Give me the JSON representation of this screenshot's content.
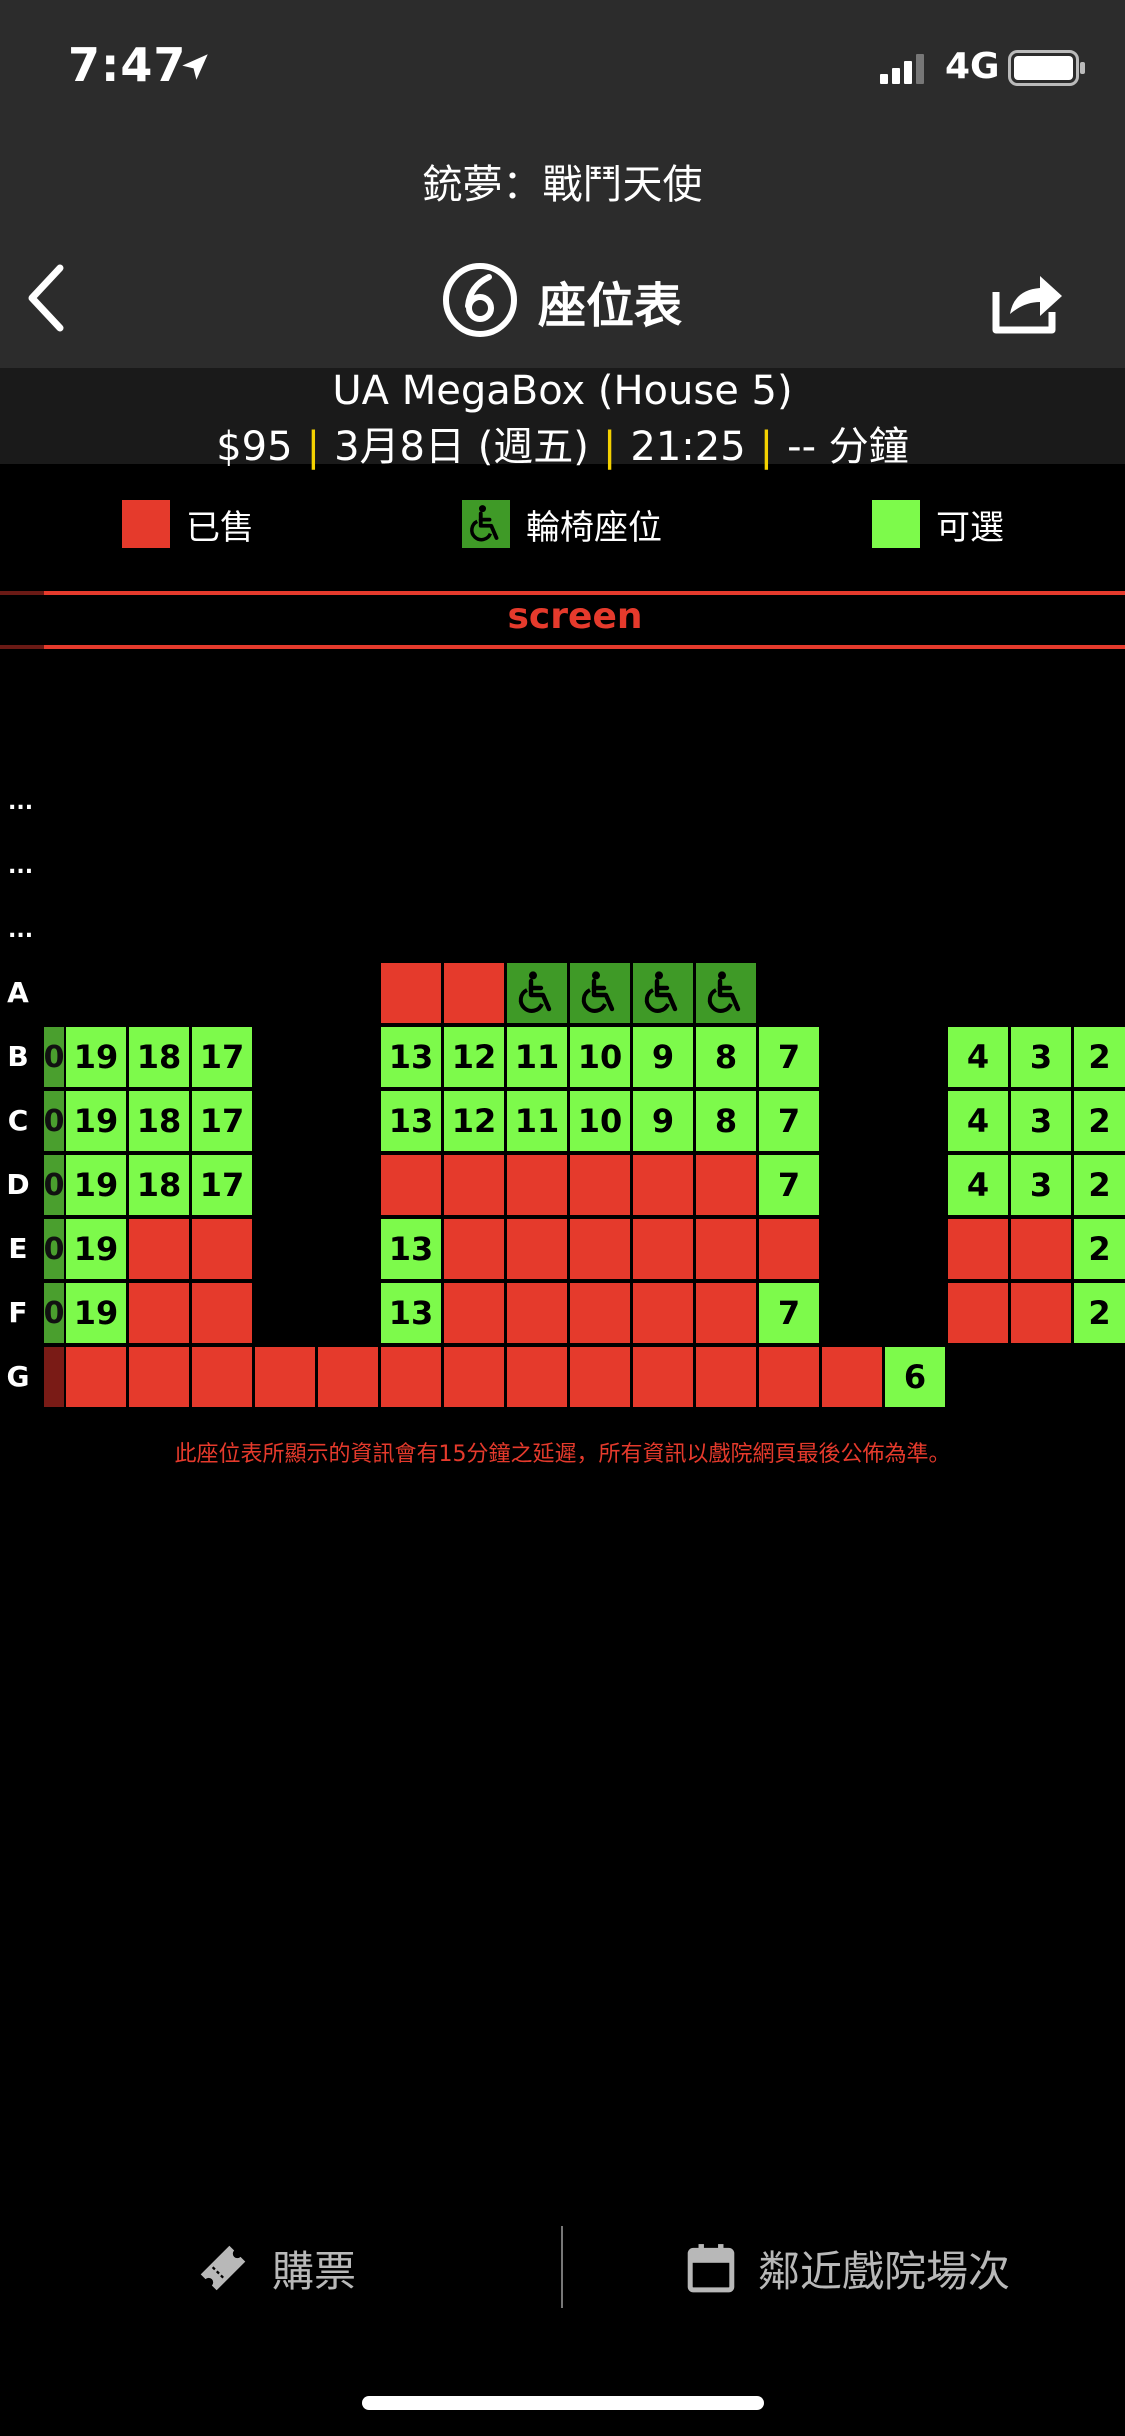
{
  "status_bar": {
    "time": "7:47",
    "network": "4G"
  },
  "header": {
    "movie_title": "銃夢：戰鬥天使",
    "page_title": "座位表"
  },
  "info": {
    "cinema": "UA MegaBox (House 5)",
    "price": "$95",
    "date": "3月8日 (週五)",
    "showtime": "21:25",
    "duration": "-- 分鐘"
  },
  "legend": {
    "sold": "已售",
    "wheelchair": "輪椅座位",
    "available": "可選"
  },
  "screen_label": "screen",
  "ellipsis": "...",
  "rows": {
    "A": {
      "label": "A"
    },
    "B": {
      "label": "B",
      "stub": "0"
    },
    "C": {
      "label": "C",
      "stub": "0"
    },
    "D": {
      "label": "D",
      "stub": "0"
    },
    "E": {
      "label": "E",
      "stub": "0"
    },
    "F": {
      "label": "F",
      "stub": "0"
    },
    "G": {
      "label": "G"
    }
  },
  "seats": {
    "B": [
      "19",
      "18",
      "17",
      "13",
      "12",
      "11",
      "10",
      "9",
      "8",
      "7",
      "4",
      "3",
      "2"
    ],
    "C": [
      "19",
      "18",
      "17",
      "13",
      "12",
      "11",
      "10",
      "9",
      "8",
      "7",
      "4",
      "3",
      "2"
    ],
    "D": [
      "19",
      "18",
      "17",
      "7",
      "4",
      "3",
      "2"
    ],
    "E": [
      "19",
      "13",
      "2"
    ],
    "F": [
      "19",
      "13",
      "7",
      "2"
    ],
    "G": [
      "6"
    ]
  },
  "notice": "此座位表所顯示的資訊會有15分鐘之延遲，所有資訊以戲院網頁最後公佈為準。",
  "bottom": {
    "buy": "購票",
    "nearby": "鄰近戲院場次"
  },
  "colors": {
    "sold": "#e53a2c",
    "available": "#7dfa4b",
    "wheelchair": "#3f9a27",
    "header_bg": "#2c2c2c"
  }
}
